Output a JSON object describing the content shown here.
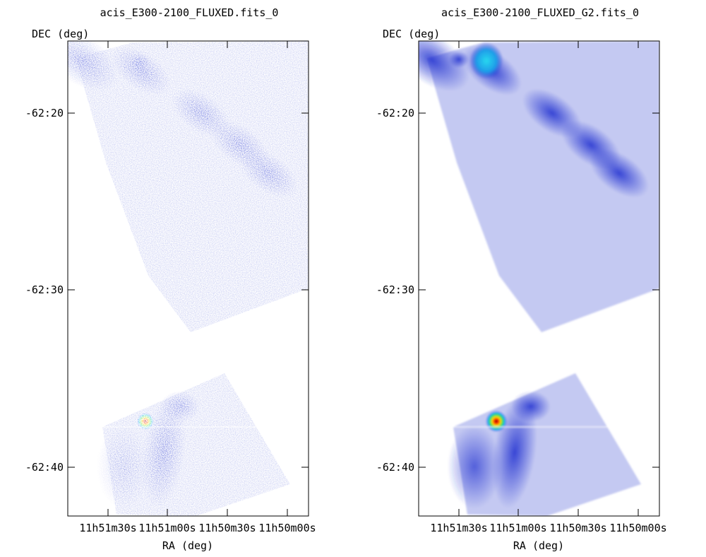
{
  "chart_data": [
    {
      "type": "heatmap",
      "title": "acis_E300-2100_FLUXED.fits_0",
      "xlabel": "RA (deg)",
      "ylabel": "DEC (deg)",
      "x_ticks": [
        "11h51m30s",
        "11h51m00s",
        "11h50m30s",
        "11h50m00s"
      ],
      "y_ticks": [
        "-62:20",
        "-62:30",
        "-62:40"
      ],
      "style": "noisy"
    },
    {
      "type": "heatmap",
      "title": "acis_E300-2100_FLUXED_G2.fits_0",
      "xlabel": "RA (deg)",
      "ylabel": "DEC (deg)",
      "x_ticks": [
        "11h51m30s",
        "11h51m00s",
        "11h50m30s",
        "11h50m00s"
      ],
      "y_ticks": [
        "-62:20",
        "-62:30",
        "-62:40"
      ],
      "style": "smoothed"
    }
  ],
  "colors": {
    "background": "#ffffff",
    "frame": "#000000",
    "field": "#c9cdf3",
    "emission": "#2a3ad6",
    "hot_source": "#ff2a00"
  }
}
